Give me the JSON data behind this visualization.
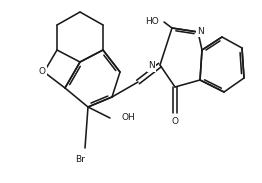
{
  "bg": "#ffffff",
  "lc": "#1a1a1a",
  "lw": 1.15,
  "fs": 7.0,
  "xlim": [
    0,
    262
  ],
  "ylim": [
    0,
    183
  ]
}
